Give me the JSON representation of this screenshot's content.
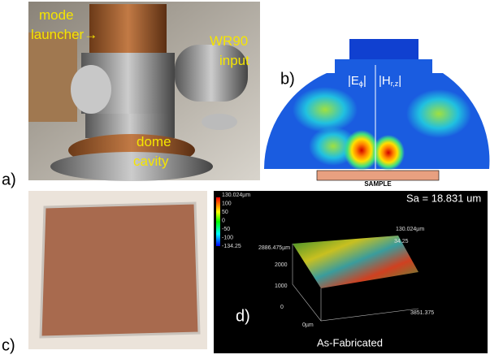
{
  "panel_a": {
    "label": "a)",
    "annotations": [
      [
        "mode",
        "launcher→"
      ],
      [
        "WR90",
        "input"
      ],
      [
        "dome",
        "cavity"
      ]
    ]
  },
  "panel_b": {
    "label": "b)",
    "fields": [
      {
        "main": "|E",
        "sub": "ϕ",
        "tail": "|"
      },
      {
        "main": "|H",
        "sub": "r,z",
        "tail": "|"
      }
    ],
    "sample": "SAMPLE"
  },
  "panel_c": {
    "label": "c)"
  },
  "panel_d": {
    "label": "d)",
    "metric": "Sa = 18.831 um",
    "caption": "As-Fabricated",
    "colorbar": [
      "130.024µm",
      "100",
      "50",
      "0",
      "-50",
      "-100",
      "-134.25"
    ],
    "axis_labels": [
      "130.024µm",
      "34.25",
      "2886.475µm",
      "2000",
      "1000",
      "0",
      "0µm",
      "3851.375"
    ]
  }
}
